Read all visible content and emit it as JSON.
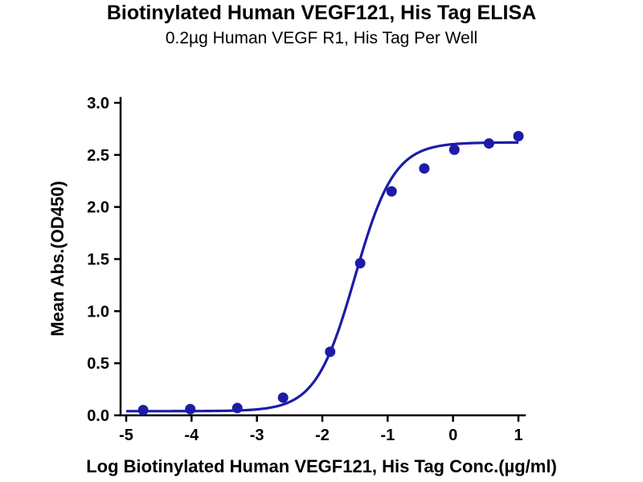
{
  "chart_data": {
    "type": "scatter",
    "title": "Biotinylated Human VEGF121, His Tag ELISA",
    "subtitle": "0.2µg Human VEGF R1, His Tag Per Well",
    "xlabel": "Log Biotinylated Human VEGF121, His Tag Conc.(µg/ml)",
    "ylabel": "Mean Abs.(OD450)",
    "xlim": [
      -5,
      1
    ],
    "ylim": [
      0,
      3
    ],
    "x_tick_labels": [
      "-5",
      "-4",
      "-3",
      "-2",
      "-1",
      "0",
      "1"
    ],
    "x_tick_values": [
      -5,
      -4,
      -3,
      -2,
      -1,
      0,
      1
    ],
    "y_tick_labels": [
      "0.0",
      "0.5",
      "1.0",
      "1.5",
      "2.0",
      "2.5",
      "3.0"
    ],
    "y_tick_values": [
      0,
      0.5,
      1,
      1.5,
      2,
      2.5,
      3
    ],
    "points": [
      {
        "x": -4.74,
        "y": 0.05
      },
      {
        "x": -4.02,
        "y": 0.06
      },
      {
        "x": -3.3,
        "y": 0.07
      },
      {
        "x": -2.6,
        "y": 0.17
      },
      {
        "x": -1.88,
        "y": 0.61
      },
      {
        "x": -1.42,
        "y": 1.46
      },
      {
        "x": -0.94,
        "y": 2.15
      },
      {
        "x": -0.44,
        "y": 2.37
      },
      {
        "x": 0.02,
        "y": 2.55
      },
      {
        "x": 0.55,
        "y": 2.61
      },
      {
        "x": 1.0,
        "y": 2.68
      }
    ],
    "fit": {
      "model": "4PL",
      "bottom": 0.04,
      "top": 2.62,
      "logEC50": -1.5,
      "hill": 1.45
    },
    "curve_color": "#1c1ca8",
    "point_color": "#1c1ca8",
    "axis_color": "#000000",
    "grid": false,
    "legend": "none"
  }
}
